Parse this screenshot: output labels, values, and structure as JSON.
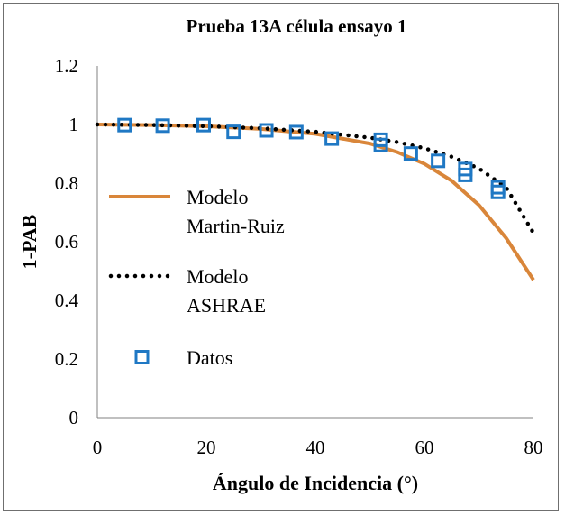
{
  "chart_data": {
    "type": "scatter",
    "title": "Prueba 13A célula ensayo 1",
    "xlabel": "Ángulo de Incidencia (°)",
    "ylabel": "1-PAB",
    "xlim": [
      0,
      80
    ],
    "ylim": [
      0,
      1.2
    ],
    "x_ticks": [
      "0",
      "20",
      "40",
      "60",
      "80"
    ],
    "y_ticks": [
      "0",
      "0.2",
      "0.4",
      "0.6",
      "0.8",
      "1",
      "1.2"
    ],
    "series": [
      {
        "name": "Modelo Martin-Ruiz",
        "legend_lines": [
          "Modelo",
          "Martin-Ruiz"
        ],
        "style": "line",
        "color": "#d9863a",
        "x": [
          0,
          10,
          20,
          30,
          40,
          50,
          55,
          60,
          65,
          70,
          75,
          80
        ],
        "y": [
          1.0,
          0.998,
          0.994,
          0.985,
          0.968,
          0.935,
          0.906,
          0.866,
          0.808,
          0.725,
          0.612,
          0.47
        ]
      },
      {
        "name": "Modelo ASHRAE",
        "legend_lines": [
          "Modelo",
          "ASHRAE"
        ],
        "style": "dotted",
        "color": "#000000",
        "x": [
          0,
          10,
          20,
          30,
          40,
          50,
          55,
          60,
          65,
          70,
          75,
          80
        ],
        "y": [
          1.0,
          0.998,
          0.994,
          0.987,
          0.975,
          0.955,
          0.94,
          0.919,
          0.89,
          0.85,
          0.785,
          0.63
        ]
      },
      {
        "name": "Datos",
        "legend_lines": [
          "Datos"
        ],
        "style": "markers",
        "color": "#1f78c4",
        "x": [
          5,
          12,
          19.5,
          25,
          31,
          36.5,
          43,
          52,
          52,
          57.5,
          62.5,
          67.5,
          67.5,
          73.5,
          73.5
        ],
        "y": [
          0.998,
          0.996,
          0.998,
          0.975,
          0.98,
          0.974,
          0.952,
          0.948,
          0.93,
          0.901,
          0.876,
          0.848,
          0.828,
          0.786,
          0.77
        ]
      }
    ]
  }
}
